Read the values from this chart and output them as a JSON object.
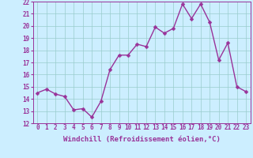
{
  "x": [
    0,
    1,
    2,
    3,
    4,
    5,
    6,
    7,
    8,
    9,
    10,
    11,
    12,
    13,
    14,
    15,
    16,
    17,
    18,
    19,
    20,
    21,
    22,
    23
  ],
  "y": [
    14.5,
    14.8,
    14.4,
    14.2,
    13.1,
    13.2,
    12.5,
    13.8,
    16.4,
    17.6,
    17.6,
    18.5,
    18.3,
    19.9,
    19.4,
    19.8,
    21.8,
    20.6,
    21.8,
    20.3,
    17.2,
    18.6,
    15.0,
    14.6
  ],
  "line_color": "#993399",
  "bg_color": "#cceeff",
  "grid_color": "#99cccc",
  "xlabel": "Windchill (Refroidissement éolien,°C)",
  "ylim": [
    12,
    22
  ],
  "xlim": [
    -0.5,
    23.5
  ],
  "yticks": [
    12,
    13,
    14,
    15,
    16,
    17,
    18,
    19,
    20,
    21,
    22
  ],
  "xticks": [
    0,
    1,
    2,
    3,
    4,
    5,
    6,
    7,
    8,
    9,
    10,
    11,
    12,
    13,
    14,
    15,
    16,
    17,
    18,
    19,
    20,
    21,
    22,
    23
  ],
  "marker_size": 2.5,
  "line_width": 1.0,
  "font_color": "#993399",
  "tick_fontsize": 5.5,
  "ylabel_fontsize": 6.0,
  "xlabel_fontsize": 6.5
}
